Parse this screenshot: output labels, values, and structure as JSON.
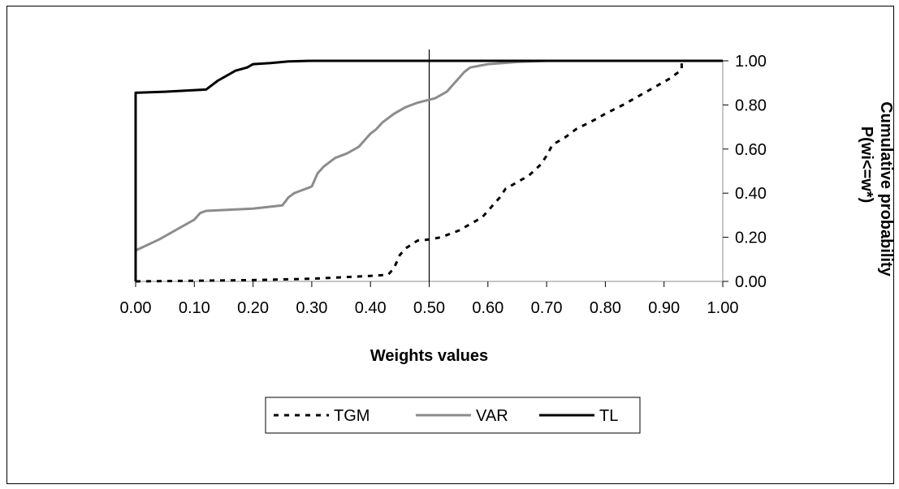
{
  "chart_data": {
    "type": "line",
    "xlabel": "Weights values",
    "ylabel_line1": "Cumulative probability",
    "ylabel_line2": "P(wi<=w*)",
    "xlim": [
      0,
      1
    ],
    "ylim": [
      0,
      1
    ],
    "x_ticks": [
      "0.00",
      "0.10",
      "0.20",
      "0.30",
      "0.40",
      "0.50",
      "0.60",
      "0.70",
      "0.80",
      "0.90",
      "1.00"
    ],
    "y_ticks": [
      "0.00",
      "0.20",
      "0.40",
      "0.60",
      "0.80",
      "1.00"
    ],
    "y_axis_side": "right",
    "reference_line_x": 0.5,
    "legend_position": "bottom",
    "series": [
      {
        "name": "TGM",
        "style": "dotted",
        "color": "#000000",
        "points": [
          [
            0.0,
            0.0
          ],
          [
            0.1,
            0.003
          ],
          [
            0.2,
            0.006
          ],
          [
            0.3,
            0.012
          ],
          [
            0.4,
            0.025
          ],
          [
            0.43,
            0.03
          ],
          [
            0.44,
            0.06
          ],
          [
            0.45,
            0.12
          ],
          [
            0.46,
            0.15
          ],
          [
            0.48,
            0.185
          ],
          [
            0.5,
            0.19
          ],
          [
            0.52,
            0.2
          ],
          [
            0.55,
            0.23
          ],
          [
            0.57,
            0.26
          ],
          [
            0.59,
            0.29
          ],
          [
            0.6,
            0.32
          ],
          [
            0.61,
            0.35
          ],
          [
            0.62,
            0.38
          ],
          [
            0.63,
            0.42
          ],
          [
            0.65,
            0.45
          ],
          [
            0.67,
            0.48
          ],
          [
            0.69,
            0.53
          ],
          [
            0.7,
            0.57
          ],
          [
            0.71,
            0.62
          ],
          [
            0.73,
            0.65
          ],
          [
            0.75,
            0.69
          ],
          [
            0.78,
            0.73
          ],
          [
            0.8,
            0.76
          ],
          [
            0.83,
            0.8
          ],
          [
            0.87,
            0.86
          ],
          [
            0.91,
            0.92
          ],
          [
            0.93,
            0.96
          ],
          [
            0.93,
            1.0
          ],
          [
            1.0,
            1.0
          ]
        ]
      },
      {
        "name": "VAR",
        "style": "solid",
        "color": "#8c8c8c",
        "points": [
          [
            0.0,
            0.14
          ],
          [
            0.04,
            0.19
          ],
          [
            0.08,
            0.25
          ],
          [
            0.1,
            0.28
          ],
          [
            0.11,
            0.31
          ],
          [
            0.12,
            0.32
          ],
          [
            0.2,
            0.33
          ],
          [
            0.25,
            0.345
          ],
          [
            0.26,
            0.38
          ],
          [
            0.27,
            0.4
          ],
          [
            0.28,
            0.41
          ],
          [
            0.3,
            0.43
          ],
          [
            0.31,
            0.49
          ],
          [
            0.32,
            0.52
          ],
          [
            0.33,
            0.54
          ],
          [
            0.34,
            0.56
          ],
          [
            0.36,
            0.58
          ],
          [
            0.38,
            0.61
          ],
          [
            0.39,
            0.64
          ],
          [
            0.4,
            0.67
          ],
          [
            0.41,
            0.69
          ],
          [
            0.42,
            0.72
          ],
          [
            0.44,
            0.76
          ],
          [
            0.46,
            0.79
          ],
          [
            0.48,
            0.81
          ],
          [
            0.51,
            0.83
          ],
          [
            0.53,
            0.86
          ],
          [
            0.54,
            0.89
          ],
          [
            0.55,
            0.92
          ],
          [
            0.56,
            0.95
          ],
          [
            0.57,
            0.97
          ],
          [
            0.6,
            0.985
          ],
          [
            0.65,
            0.995
          ],
          [
            0.7,
            1.0
          ],
          [
            1.0,
            1.0
          ]
        ]
      },
      {
        "name": "TL",
        "style": "solid",
        "color": "#000000",
        "points": [
          [
            0.0,
            0.0
          ],
          [
            0.0,
            0.855
          ],
          [
            0.05,
            0.86
          ],
          [
            0.12,
            0.87
          ],
          [
            0.13,
            0.89
          ],
          [
            0.14,
            0.91
          ],
          [
            0.15,
            0.925
          ],
          [
            0.16,
            0.94
          ],
          [
            0.17,
            0.955
          ],
          [
            0.19,
            0.97
          ],
          [
            0.2,
            0.985
          ],
          [
            0.23,
            0.99
          ],
          [
            0.26,
            0.997
          ],
          [
            0.3,
            1.0
          ],
          [
            1.0,
            1.0
          ]
        ]
      }
    ]
  }
}
